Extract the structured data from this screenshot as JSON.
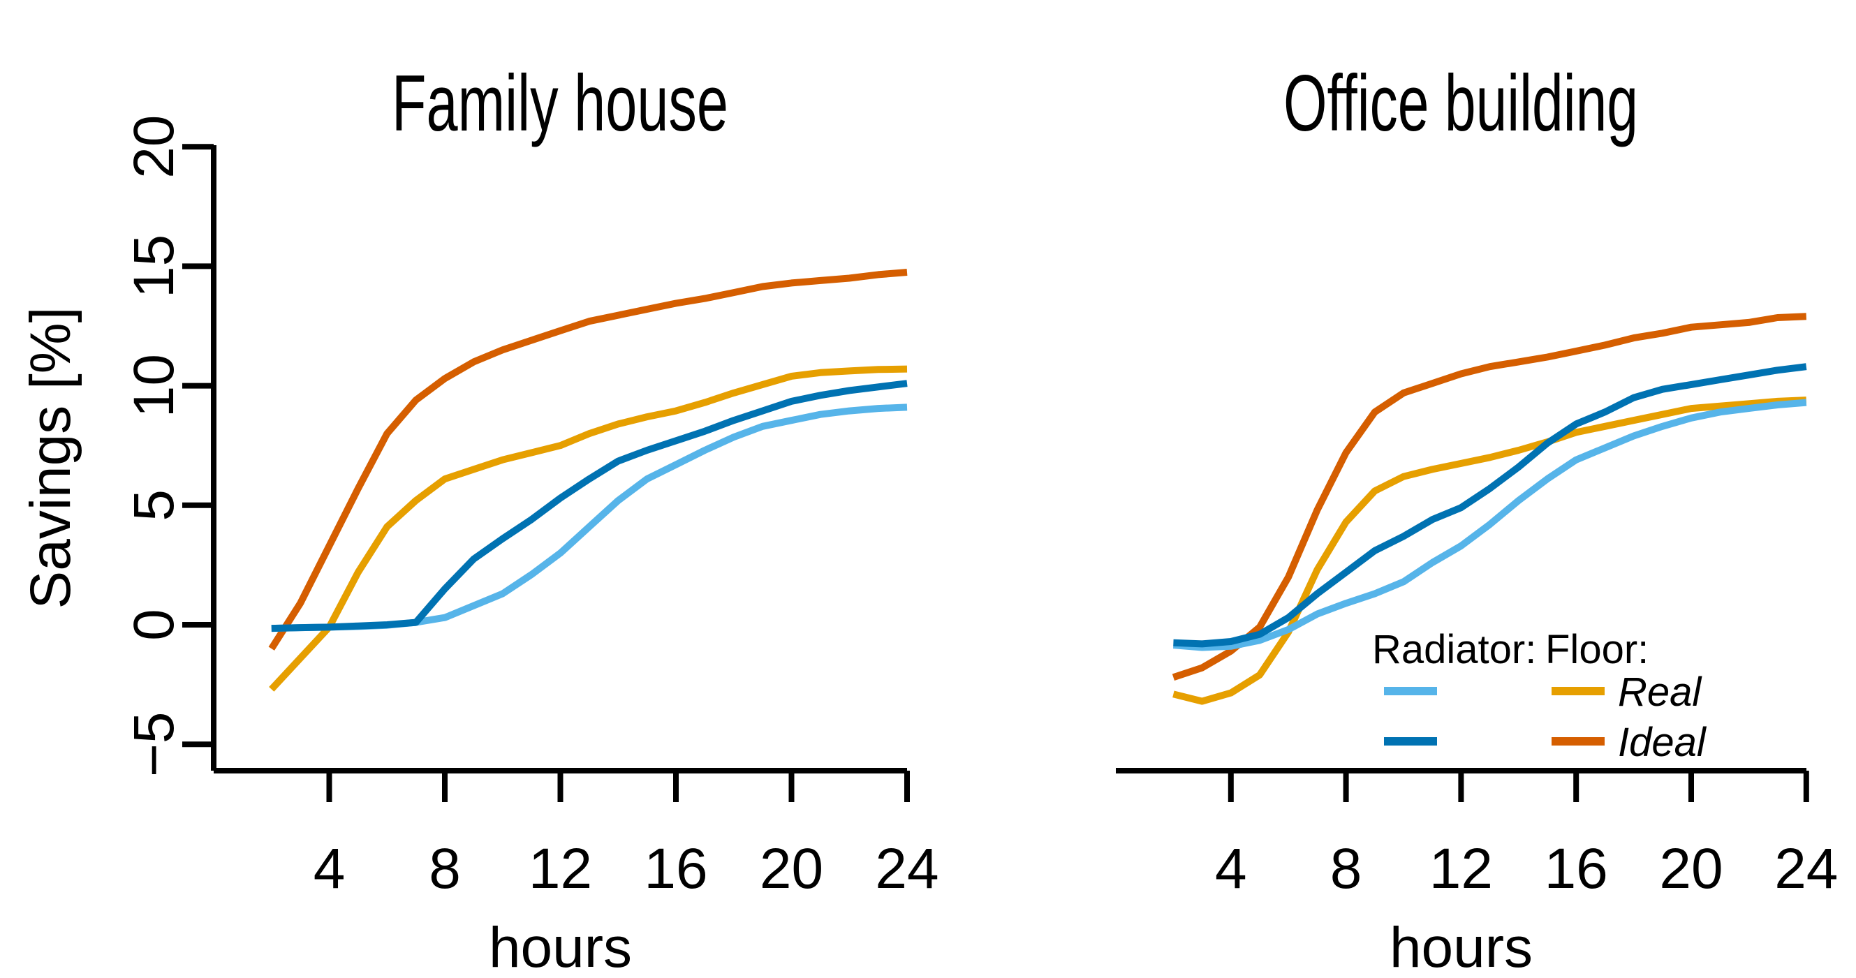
{
  "page": {
    "background": "#ffffff",
    "text_color": "#000000"
  },
  "chart_data": [
    {
      "type": "line",
      "title": "Family house",
      "xlabel": "hours",
      "ylabel": "Savings [%]",
      "x_ticks": [
        4,
        8,
        12,
        16,
        20,
        24
      ],
      "y_ticks": [
        -5,
        0,
        5,
        10,
        15,
        20
      ],
      "xlim": [
        0,
        24.6
      ],
      "ylim": [
        -7.4,
        20.2
      ],
      "grid": false,
      "x": [
        2,
        3,
        4,
        5,
        6,
        7,
        8,
        9,
        10,
        11,
        12,
        13,
        14,
        15,
        16,
        17,
        18,
        19,
        20,
        21,
        22,
        23,
        24
      ],
      "series": [
        {
          "name": "Floor Real",
          "color": "#E69F00",
          "values": [
            -2.7,
            -1.4,
            -0.1,
            2.2,
            4.1,
            5.2,
            6.1,
            6.5,
            6.9,
            7.2,
            7.5,
            8.0,
            8.4,
            8.7,
            8.95,
            9.3,
            9.7,
            10.05,
            10.4,
            10.55,
            10.62,
            10.68,
            10.7
          ]
        },
        {
          "name": "Floor Ideal",
          "color": "#D55E00",
          "values": [
            -1.0,
            0.9,
            3.3,
            5.7,
            8.0,
            9.4,
            10.3,
            11.0,
            11.5,
            11.9,
            12.3,
            12.7,
            12.95,
            13.2,
            13.45,
            13.65,
            13.9,
            14.15,
            14.3,
            14.4,
            14.5,
            14.65,
            14.75
          ]
        },
        {
          "name": "Radiator Real",
          "color": "#56B4E9",
          "values": [
            -0.15,
            -0.12,
            -0.1,
            -0.07,
            -0.02,
            0.1,
            0.3,
            0.8,
            1.3,
            2.1,
            3.0,
            4.1,
            5.2,
            6.1,
            6.7,
            7.3,
            7.85,
            8.3,
            8.55,
            8.8,
            8.95,
            9.05,
            9.1
          ]
        },
        {
          "name": "Radiator Ideal",
          "color": "#0072B2",
          "values": [
            -0.15,
            -0.12,
            -0.1,
            -0.05,
            0.0,
            0.1,
            1.5,
            2.75,
            3.6,
            4.4,
            5.3,
            6.1,
            6.85,
            7.3,
            7.7,
            8.1,
            8.55,
            8.95,
            9.35,
            9.6,
            9.8,
            9.95,
            10.1
          ]
        }
      ],
      "legend": null
    },
    {
      "type": "line",
      "title": "Office building",
      "xlabel": "hours",
      "ylabel": "",
      "x_ticks": [
        4,
        8,
        12,
        16,
        20,
        24
      ],
      "y_ticks": [],
      "xlim": [
        0,
        24.6
      ],
      "ylim": [
        -7.4,
        20.2
      ],
      "grid": false,
      "x": [
        2,
        3,
        4,
        5,
        6,
        7,
        8,
        9,
        10,
        11,
        12,
        13,
        14,
        15,
        16,
        17,
        18,
        19,
        20,
        21,
        22,
        23,
        24
      ],
      "series": [
        {
          "name": "Floor Real",
          "color": "#E69F00",
          "values": [
            -2.9,
            -3.2,
            -2.85,
            -2.1,
            -0.3,
            2.3,
            4.3,
            5.6,
            6.2,
            6.5,
            6.75,
            7.0,
            7.3,
            7.65,
            8.05,
            8.3,
            8.55,
            8.8,
            9.05,
            9.15,
            9.25,
            9.35,
            9.4
          ]
        },
        {
          "name": "Floor Ideal",
          "color": "#D55E00",
          "values": [
            -2.2,
            -1.8,
            -1.1,
            -0.1,
            2.0,
            4.8,
            7.2,
            8.9,
            9.7,
            10.1,
            10.5,
            10.8,
            11.0,
            11.2,
            11.45,
            11.7,
            12.0,
            12.2,
            12.45,
            12.55,
            12.65,
            12.85,
            12.9
          ]
        },
        {
          "name": "Radiator Real",
          "color": "#56B4E9",
          "values": [
            -0.85,
            -0.95,
            -0.9,
            -0.65,
            -0.2,
            0.45,
            0.9,
            1.3,
            1.8,
            2.6,
            3.3,
            4.2,
            5.2,
            6.1,
            6.9,
            7.4,
            7.9,
            8.3,
            8.65,
            8.9,
            9.05,
            9.2,
            9.3
          ]
        },
        {
          "name": "Radiator Ideal",
          "color": "#0072B2",
          "values": [
            -0.75,
            -0.8,
            -0.7,
            -0.4,
            0.3,
            1.3,
            2.2,
            3.1,
            3.7,
            4.4,
            4.9,
            5.7,
            6.6,
            7.6,
            8.4,
            8.9,
            9.5,
            9.85,
            10.05,
            10.25,
            10.45,
            10.65,
            10.8
          ]
        }
      ],
      "legend": {
        "position": "bottom-right-inside",
        "headers": [
          "Radiator:",
          "Floor:"
        ],
        "rows": [
          "Real",
          "Ideal"
        ],
        "row_styles": "italic",
        "mapping": {
          "Real": {
            "Radiator:": "#56B4E9",
            "Floor:": "#E69F00"
          },
          "Ideal": {
            "Radiator:": "#0072B2",
            "Floor:": "#D55E00"
          }
        }
      }
    }
  ]
}
